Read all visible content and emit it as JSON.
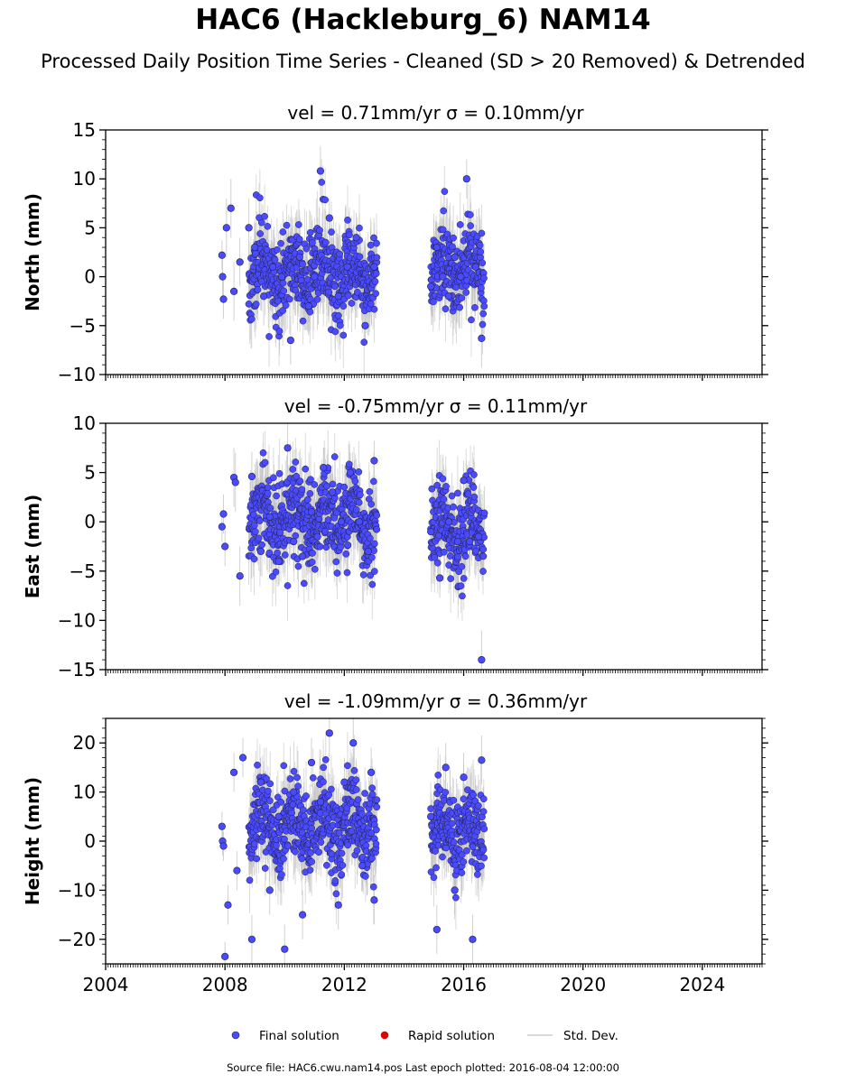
{
  "figure": {
    "title": "HAC6 (Hackleburg_6) NAM14",
    "subtitle": "Processed Daily Position Time Series - Cleaned (SD > 20 Removed) & Detrended",
    "source_note": "Source file: HAC6.cwu.nam14.pos  Last epoch plotted: 2016-08-04 12:00:00",
    "legend": [
      {
        "label": "Final solution",
        "color": "#4a4aff",
        "marker": "dot"
      },
      {
        "label": "Rapid solution",
        "color": "#e00000",
        "marker": "dot"
      },
      {
        "label": "Std. Dev.",
        "color": "#cccccc",
        "marker": "line"
      }
    ]
  },
  "chart_data": [
    {
      "type": "scatter",
      "title": "vel = 0.71mm/yr   σ = 0.10mm/yr",
      "ylabel": "North (mm)",
      "xlim": [
        2004,
        2026
      ],
      "ylim": [
        -10,
        15
      ],
      "xticks": [
        2004,
        2008,
        2012,
        2016,
        2020,
        2024
      ],
      "yticks": [
        -10,
        -5,
        0,
        5,
        10,
        15
      ],
      "series": [
        {
          "name": "Final solution",
          "color": "#4a4aff",
          "x": [
            2007.9,
            2007.92,
            2007.95,
            2008.05,
            2008.2,
            2008.3,
            2008.5,
            2008.8,
            2009.0,
            2009.3,
            2009.6,
            2009.9,
            2010.2,
            2010.5,
            2010.8,
            2011.0,
            2011.2,
            2011.5,
            2011.8,
            2012.1,
            2012.4,
            2012.7,
            2013.0,
            2014.9,
            2015.1,
            2015.3,
            2015.5,
            2015.7,
            2015.9,
            2016.1,
            2016.4,
            2016.6
          ],
          "y": [
            2.2,
            0,
            -2.3,
            5,
            7,
            -1.5,
            1.5,
            5,
            3,
            -2,
            1,
            0,
            -6.5,
            2,
            -3,
            0,
            10.8,
            6,
            -2,
            1,
            4,
            -5,
            1,
            -1,
            3,
            0,
            -2,
            2,
            0,
            10,
            1,
            -6.3
          ],
          "sd": [
            1.5,
            2,
            2,
            3,
            3,
            3,
            2.5,
            3,
            2.5,
            3,
            2.5,
            3,
            2.5,
            2.5,
            3,
            3,
            2.5,
            2,
            2,
            2,
            2.5,
            2,
            2,
            2.5,
            2.5,
            2.5,
            2.5,
            2.5,
            2.5,
            2,
            2.5,
            3
          ]
        }
      ],
      "density_spans": [
        [
          2008.8,
          2013.1,
          0.45
        ],
        [
          2014.9,
          2016.7,
          0.8
        ]
      ],
      "noise_seed": 11
    },
    {
      "type": "scatter",
      "title": "vel = -0.75mm/yr   σ = 0.11mm/yr",
      "ylabel": "East (mm)",
      "xlim": [
        2004,
        2026
      ],
      "ylim": [
        -15,
        10
      ],
      "xticks": [
        2004,
        2008,
        2012,
        2016,
        2020,
        2024
      ],
      "yticks": [
        -15,
        -10,
        -5,
        0,
        5,
        10
      ],
      "series": [
        {
          "name": "Final solution",
          "color": "#4a4aff",
          "x": [
            2007.9,
            2007.95,
            2008.0,
            2008.3,
            2008.35,
            2008.5,
            2008.9,
            2009.2,
            2009.5,
            2009.8,
            2010.1,
            2010.3,
            2010.6,
            2010.9,
            2011.1,
            2011.3,
            2011.6,
            2011.9,
            2012.2,
            2012.5,
            2012.8,
            2013.0,
            2014.9,
            2015.2,
            2015.5,
            2015.8,
            2016.0,
            2016.2,
            2016.5,
            2016.6
          ],
          "y": [
            -0.5,
            0.8,
            -2.5,
            4.5,
            4,
            -5.5,
            4.6,
            -3,
            0.5,
            -4,
            7.5,
            -2,
            -3.5,
            1,
            -1.5,
            5.5,
            3,
            0,
            5,
            0,
            -3,
            6.2,
            -1,
            -5.7,
            0,
            -2,
            4.2,
            -2,
            -1.5,
            -14
          ],
          "sd": [
            1.5,
            2,
            2,
            3,
            3,
            3,
            2.5,
            2.5,
            2.5,
            2.5,
            2.5,
            3,
            2.5,
            2.5,
            2,
            2,
            2,
            2,
            2,
            2,
            2,
            2,
            2,
            2,
            2,
            2,
            2,
            2,
            2.5,
            3
          ]
        }
      ],
      "density_spans": [
        [
          2008.8,
          2013.1,
          0.5
        ],
        [
          2014.9,
          2016.7,
          -0.8
        ]
      ],
      "noise_seed": 23
    },
    {
      "type": "scatter",
      "title": "vel = -1.09mm/yr   σ = 0.36mm/yr",
      "ylabel": "Height (mm)",
      "xlim": [
        2004,
        2026
      ],
      "ylim": [
        -25,
        25
      ],
      "xticks": [
        2004,
        2008,
        2012,
        2016,
        2020,
        2024
      ],
      "yticks": [
        -20,
        -10,
        0,
        10,
        20
      ],
      "series": [
        {
          "name": "Final solution",
          "color": "#4a4aff",
          "x": [
            2007.9,
            2007.92,
            2007.95,
            2008.0,
            2008.1,
            2008.3,
            2008.4,
            2008.6,
            2008.9,
            2009.2,
            2009.5,
            2009.8,
            2010.0,
            2010.3,
            2010.6,
            2010.9,
            2011.2,
            2011.5,
            2011.8,
            2012.0,
            2012.3,
            2012.6,
            2012.9,
            2013.0,
            2014.9,
            2015.1,
            2015.4,
            2015.7,
            2016.0,
            2016.3,
            2016.6
          ],
          "y": [
            3,
            0,
            -1,
            -23.5,
            -13,
            14,
            -6,
            17,
            -20,
            12,
            -10,
            5,
            -22,
            10,
            -15,
            16,
            8,
            22,
            -13,
            12,
            20,
            -5,
            14,
            -12,
            5,
            -18,
            15,
            -10,
            13,
            -20,
            16.5
          ],
          "sd": [
            3,
            3,
            3,
            3,
            4,
            4,
            4,
            4,
            5,
            5,
            5,
            5,
            5,
            5,
            5,
            5,
            5,
            5,
            5,
            5,
            5,
            5,
            5,
            5,
            5,
            5,
            5,
            5,
            5,
            5,
            5
          ]
        }
      ],
      "density_spans": [
        [
          2008.8,
          2013.1,
          3.0
        ],
        [
          2014.9,
          2016.7,
          2.0
        ]
      ],
      "noise_seed": 37
    }
  ]
}
